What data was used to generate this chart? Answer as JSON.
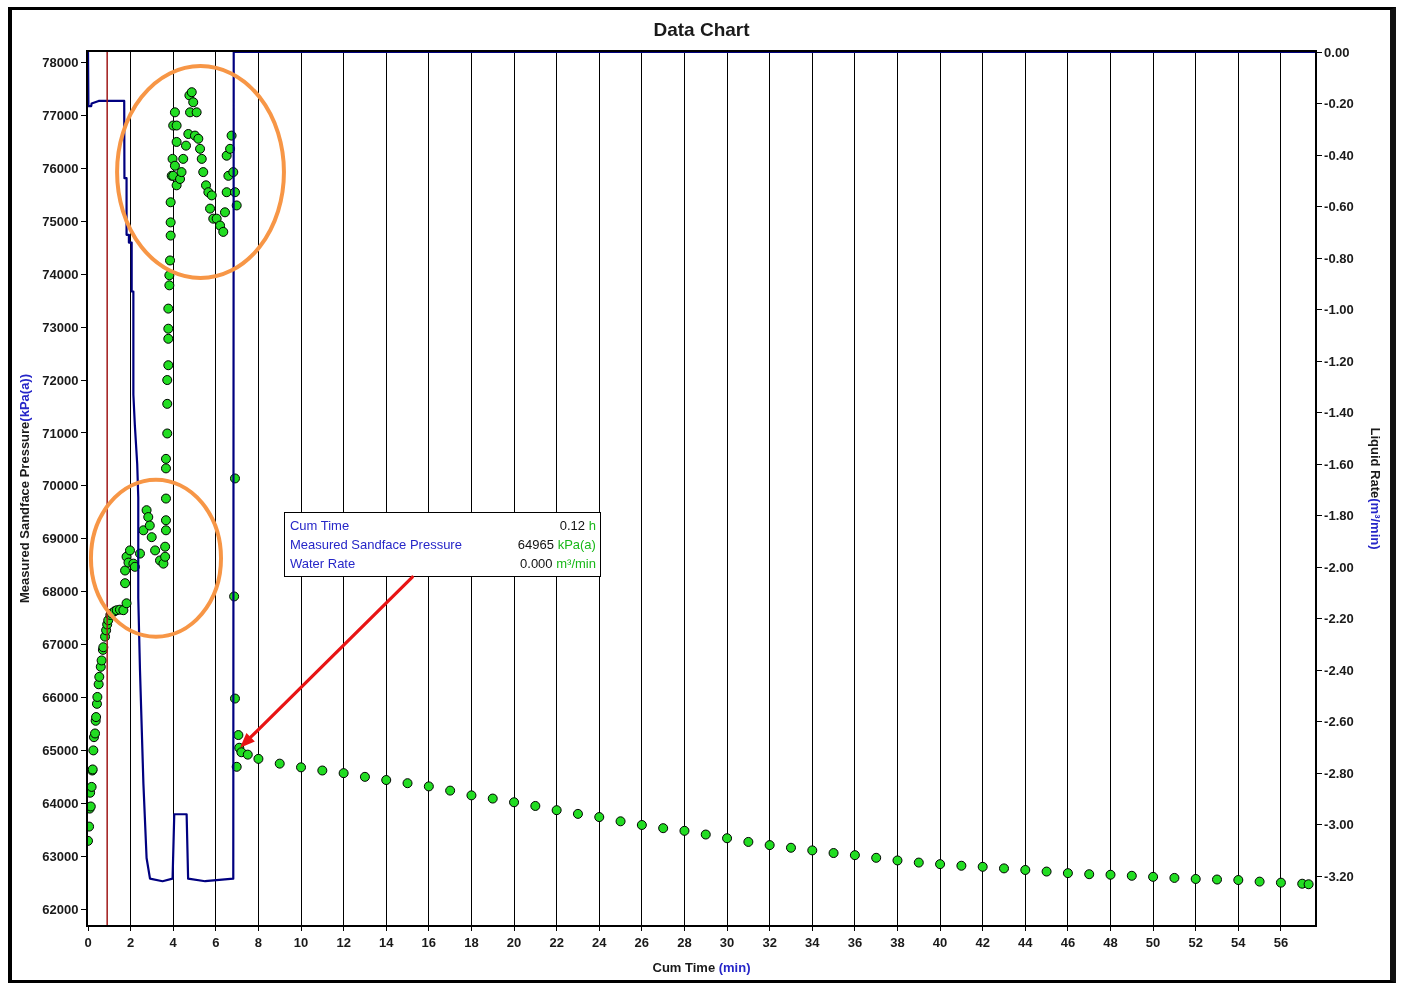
{
  "chart_data": {
    "type": "scatter",
    "title": "Data Chart",
    "xlabel": "Cum Time (min)",
    "ylabel": "Measured Sandface Pressure(kPa(a))",
    "y2label": "Liquid Rate(m³/min)",
    "xlim": [
      0,
      57.6
    ],
    "xticks": [
      0,
      2,
      4,
      6,
      8,
      10,
      12,
      14,
      16,
      18,
      20,
      22,
      24,
      26,
      28,
      30,
      32,
      34,
      36,
      38,
      40,
      42,
      44,
      46,
      48,
      50,
      52,
      54,
      56
    ],
    "ylim": [
      61700,
      78200
    ],
    "yticks": [
      62000,
      63000,
      64000,
      65000,
      66000,
      67000,
      68000,
      69000,
      70000,
      71000,
      72000,
      73000,
      74000,
      75000,
      76000,
      77000,
      78000
    ],
    "y2lim": [
      -3.39,
      0
    ],
    "y2ticks": [
      {
        "value": 0,
        "label": "0.00"
      },
      {
        "value": -0.2,
        "label": "-0.20"
      },
      {
        "value": -0.4,
        "label": "-0.40"
      },
      {
        "value": -0.6,
        "label": "-0.60"
      },
      {
        "value": -0.8,
        "label": "-0.80"
      },
      {
        "value": -1,
        "label": "-1.00"
      },
      {
        "value": -1.2,
        "label": "-1.20"
      },
      {
        "value": -1.4,
        "label": "-1.40"
      },
      {
        "value": -1.6,
        "label": "-1.60"
      },
      {
        "value": -1.8,
        "label": "-1.80"
      },
      {
        "value": -2,
        "label": "-2.00"
      },
      {
        "value": -2.2,
        "label": "-2.20"
      },
      {
        "value": -2.4,
        "label": "-2.40"
      },
      {
        "value": -2.6,
        "label": "-2.60"
      },
      {
        "value": -2.8,
        "label": "-2.80"
      },
      {
        "value": -3,
        "label": "-3.00"
      },
      {
        "value": -3.2,
        "label": "-3.20"
      }
    ],
    "grid": "x",
    "marker": "circle",
    "ref_lines": [
      {
        "axis": "x",
        "value": 0.9,
        "color": "#a01818"
      }
    ],
    "annotations": [
      "Cum Time 0.12 h\nMeasured Sandface Pressure 64965 kPa(a)\nWater Rate 0.000 m³/min"
    ],
    "series": [
      {
        "type": "line",
        "axis": "y2",
        "marker": "none",
        "color": "#000080",
        "x": [
          0,
          0.02,
          0.15,
          0.17,
          0.5,
          1.7,
          1.71,
          1.81,
          1.81,
          1.92,
          1.92,
          2.05,
          2.05,
          2.13,
          2.13,
          2.2,
          2.31,
          2.36,
          2.36,
          2.44,
          2.6,
          2.75,
          2.91,
          3.5,
          3.97,
          4.05,
          4.63,
          4.7,
          5.5,
          6.82,
          6.84,
          57.6
        ],
        "values": [
          0,
          -0.21,
          -0.21,
          -0.2,
          -0.19,
          -0.19,
          -0.49,
          -0.49,
          -0.71,
          -0.71,
          -0.74,
          -0.74,
          -0.93,
          -0.93,
          -1.33,
          -1.45,
          -1.6,
          -1.73,
          -2.12,
          -2.4,
          -2.84,
          -3.13,
          -3.21,
          -3.22,
          -3.21,
          -2.96,
          -2.96,
          -3.21,
          -3.22,
          -3.21,
          0,
          0
        ]
      },
      {
        "color": "#22dd22",
        "x": [
          0,
          0.05,
          0.08,
          0.1,
          0.13,
          0.17,
          0.2,
          0.22,
          0.25,
          0.28,
          0.33,
          0.36,
          0.38,
          0.42,
          0.44,
          0.5,
          0.53,
          0.6,
          0.64,
          0.7,
          0.72,
          0.8,
          0.85,
          0.9,
          0.95,
          1.05,
          1.11,
          1.25,
          1.35,
          1.5,
          1.66,
          1.81,
          1.74,
          1.74,
          1.81,
          1.97,
          1.9,
          2.13,
          2.2,
          2.44,
          2.6,
          2.75,
          2.83,
          2.9,
          2.99,
          3.15,
          3.38,
          3.54,
          3.62,
          3.62,
          3.66,
          3.66,
          3.66,
          3.66,
          3.66,
          3.72,
          3.72,
          3.72,
          3.77,
          3.77,
          3.77,
          3.77,
          3.82,
          3.82,
          3.85,
          3.88,
          3.88,
          3.88,
          3.93,
          3.97,
          4.0,
          4.08,
          4.16,
          4.16,
          4.08,
          4.0,
          4.16,
          4.32,
          4.39,
          4.47,
          4.6,
          4.71,
          4.79,
          4.76,
          4.87,
          4.94,
          5.1,
          5.02,
          5.18,
          5.26,
          5.34,
          5.41,
          5.54,
          5.65,
          5.81,
          5.73,
          5.88,
          6.04,
          6.2,
          6.35,
          6.43,
          6.51,
          6.59,
          6.51,
          6.67,
          6.74,
          6.82,
          6.9,
          6.98,
          6.9,
          6.86,
          6.9,
          7.06,
          6.98,
          7.1,
          7.2,
          7.5,
          8,
          9,
          10,
          11,
          12,
          13,
          14,
          15,
          16,
          17,
          18,
          19,
          20,
          21,
          22,
          23,
          24,
          25,
          26,
          27,
          28,
          29,
          30,
          31,
          32,
          33,
          34,
          35,
          36,
          37,
          38,
          39,
          40,
          41,
          42,
          43,
          44,
          45,
          46,
          47,
          48,
          49,
          50,
          51,
          52,
          53,
          54,
          55,
          56,
          57,
          57.3
        ],
        "values": [
          63290,
          63560,
          63900,
          64200,
          63940,
          64310,
          64620,
          64640,
          65000,
          65250,
          65320,
          65560,
          65630,
          65880,
          66010,
          66250,
          66390,
          66580,
          66700,
          66900,
          66950,
          67150,
          67270,
          67380,
          67460,
          67560,
          67590,
          67630,
          67650,
          67660,
          67650,
          67780,
          68160,
          68400,
          68660,
          68780,
          68550,
          68530,
          68470,
          68720,
          69160,
          69540,
          69410,
          69250,
          69030,
          68780,
          68590,
          68530,
          68660,
          68850,
          69160,
          69350,
          69760,
          70330,
          70510,
          70990,
          71550,
          72000,
          72280,
          72780,
          72970,
          73350,
          73790,
          73980,
          74260,
          74730,
          74980,
          75360,
          75860,
          76180,
          76810,
          77060,
          76810,
          76500,
          76050,
          75860,
          75680,
          75800,
          75930,
          76180,
          76430,
          76650,
          77060,
          77380,
          77440,
          77250,
          77060,
          76620,
          76560,
          76370,
          76180,
          75930,
          75680,
          75550,
          75490,
          75240,
          75050,
          75050,
          74920,
          74800,
          75170,
          75550,
          75860,
          76240,
          76370,
          76620,
          75930,
          75550,
          75300,
          70140,
          67910,
          65980,
          65290,
          64690,
          65050,
          64965,
          64920,
          64840,
          64750,
          64680,
          64620,
          64570,
          64500,
          64440,
          64380,
          64320,
          64240,
          64150,
          64090,
          64020,
          63950,
          63870,
          63800,
          63740,
          63660,
          63590,
          63530,
          63480,
          63410,
          63340,
          63270,
          63210,
          63160,
          63110,
          63060,
          63020,
          62970,
          62920,
          62880,
          62850,
          62820,
          62800,
          62770,
          62740,
          62710,
          62680,
          62660,
          62650,
          62630,
          62610,
          62590,
          62570,
          62560,
          62550,
          62520,
          62500,
          62480,
          62470
        ]
      }
    ]
  }
}
